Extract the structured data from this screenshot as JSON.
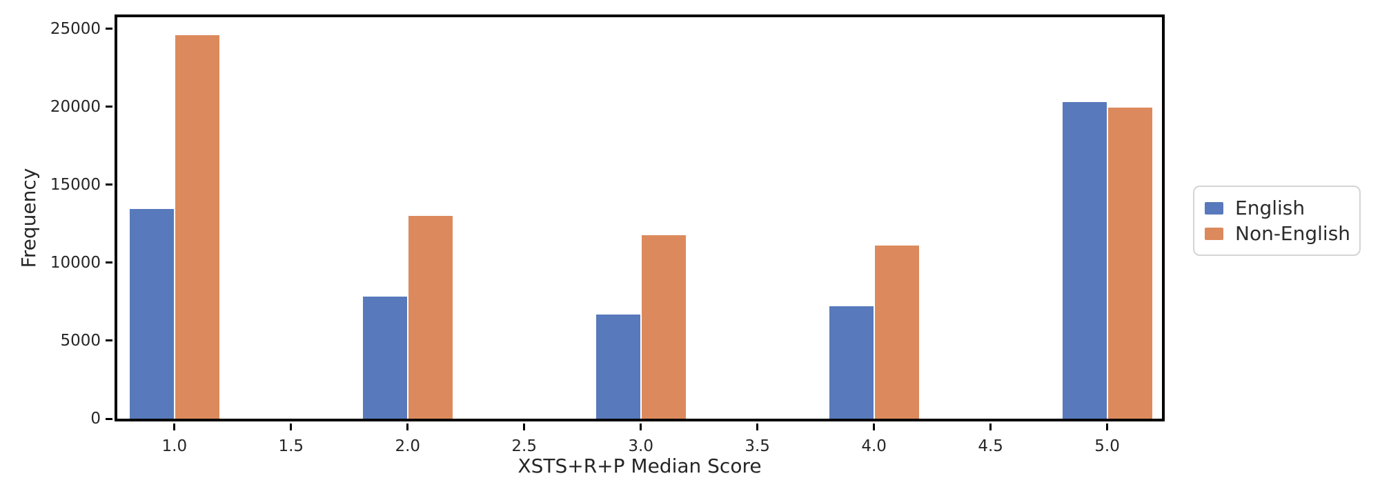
{
  "chart_data": {
    "type": "bar",
    "title": "",
    "xlabel": "XSTS+R+P Median Score",
    "ylabel": "Frequency",
    "categories": [
      1.0,
      2.0,
      3.0,
      4.0,
      5.0
    ],
    "series": [
      {
        "name": "English",
        "color": "#5879bb",
        "values": [
          13450,
          7850,
          6700,
          7200,
          20300
        ]
      },
      {
        "name": "Non-English",
        "color": "#dc8a5d",
        "values": [
          24600,
          13000,
          11750,
          11100,
          19950
        ]
      }
    ],
    "x_ticks": [
      1.0,
      1.5,
      2.0,
      2.5,
      3.0,
      3.5,
      4.0,
      4.5,
      5.0
    ],
    "x_tick_labels": [
      "1.0",
      "1.5",
      "2.0",
      "2.5",
      "3.0",
      "3.5",
      "4.0",
      "4.5",
      "5.0"
    ],
    "y_ticks": [
      0,
      5000,
      10000,
      15000,
      20000,
      25000
    ],
    "y_tick_labels": [
      "0",
      "5000",
      "10000",
      "15000",
      "20000",
      "25000"
    ],
    "xlim": [
      0.755,
      5.235
    ],
    "ylim": [
      0,
      25750
    ],
    "grid": false,
    "legend": {
      "position": "center-right-outside",
      "entries": [
        "English",
        "Non-English"
      ]
    },
    "frame_color": "#000000",
    "text_color": "#262626",
    "background_color": "#ffffff"
  }
}
